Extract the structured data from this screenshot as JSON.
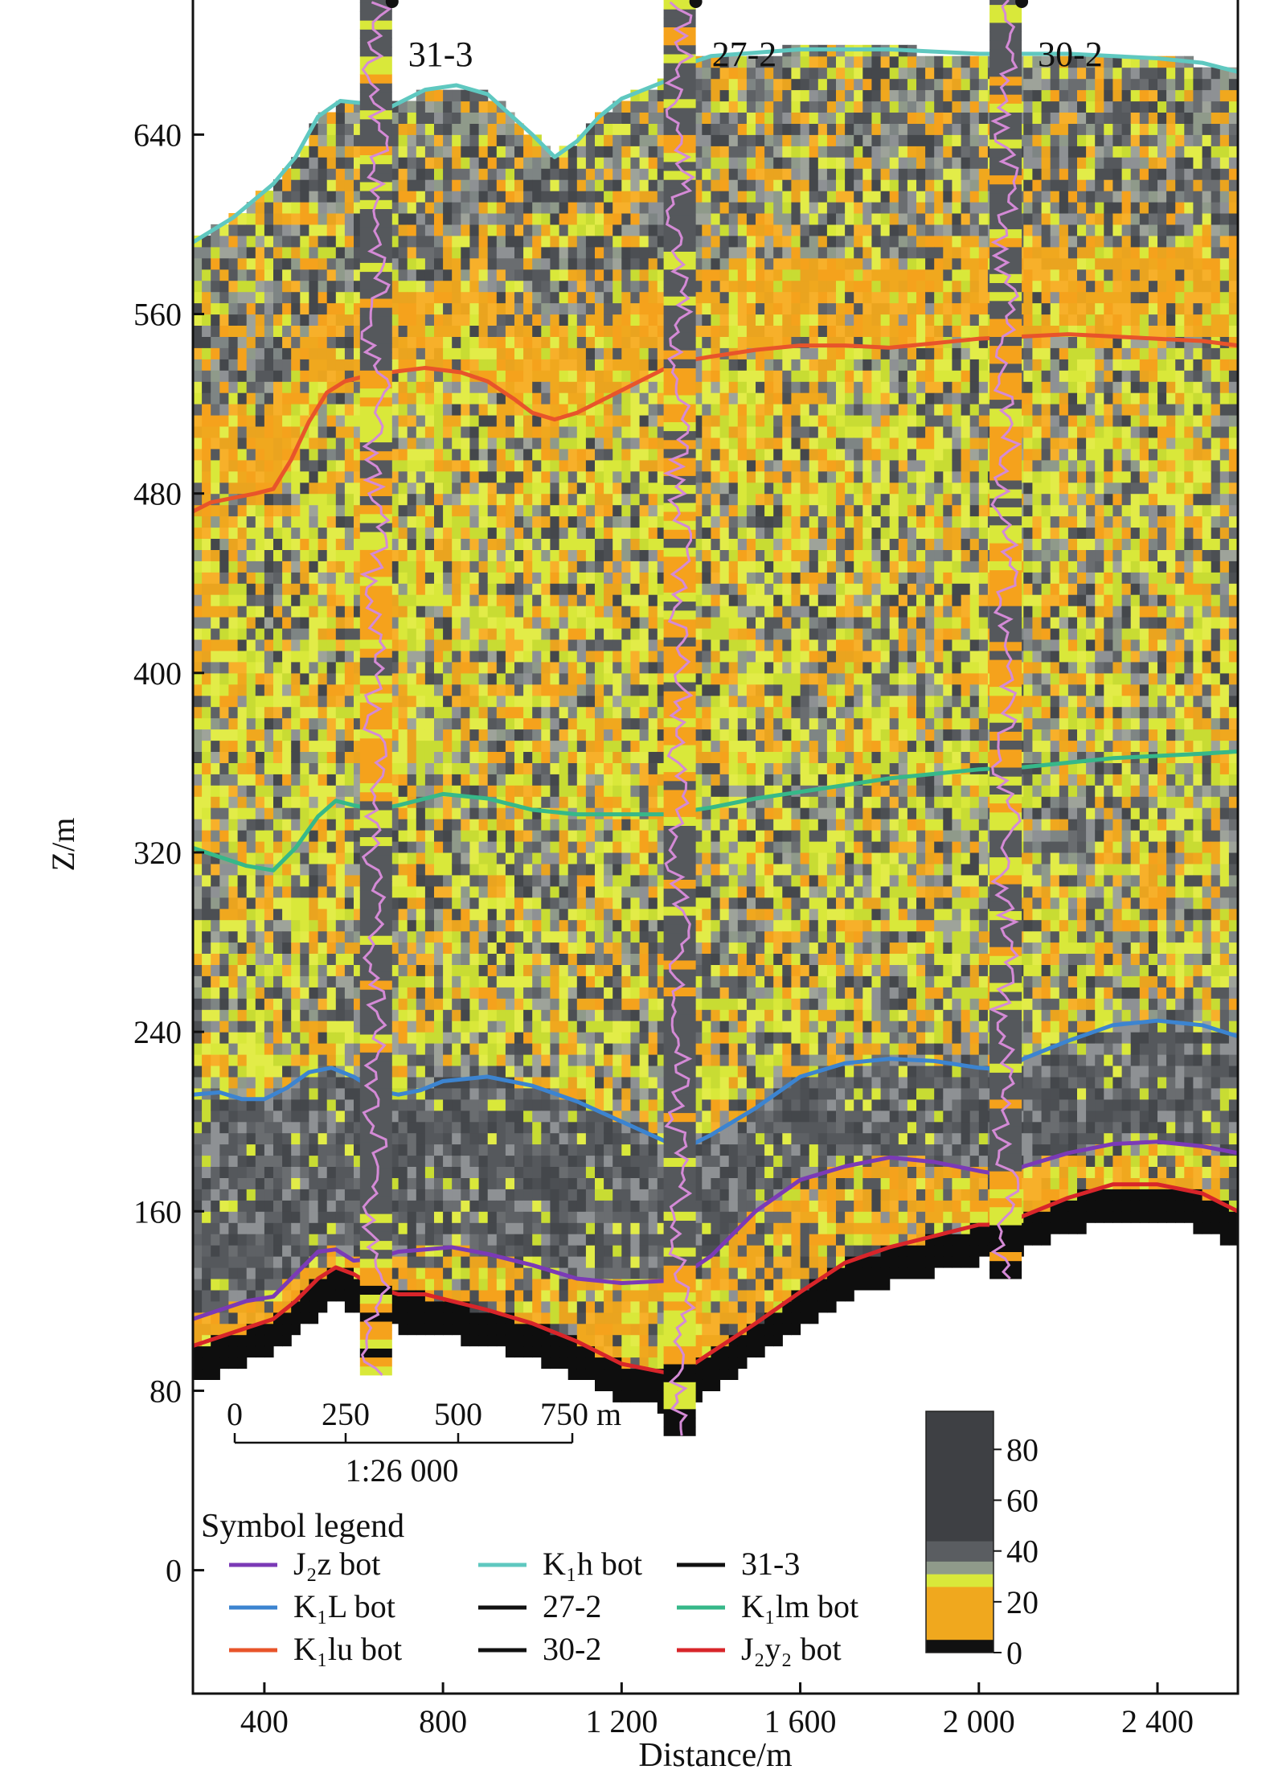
{
  "chart_data": {
    "type": "heatmap",
    "title": "",
    "xlabel": "Distance/m",
    "ylabel": "Z/m",
    "xlim": [
      240,
      2580
    ],
    "ylim": [
      -55,
      700
    ],
    "x_ticks": [
      "400",
      "800",
      "1 200",
      "1 600",
      "2 000",
      "2 400"
    ],
    "x_tick_values": [
      400,
      800,
      1200,
      1600,
      2000,
      2400
    ],
    "y_ticks": [
      "0",
      "80",
      "160",
      "240",
      "320",
      "400",
      "480",
      "560",
      "640"
    ],
    "y_tick_values": [
      0,
      80,
      160,
      240,
      320,
      400,
      480,
      560,
      640
    ],
    "colorbar": {
      "ticks": [
        "0",
        "20",
        "40",
        "60",
        "80"
      ],
      "tick_values": [
        0,
        20,
        40,
        60,
        80
      ],
      "range": [
        0,
        95
      ],
      "stops": [
        {
          "value": 0,
          "color": "#111111"
        },
        {
          "value": 5,
          "color": "#f5a21c"
        },
        {
          "value": 26,
          "color": "#f0a81e"
        },
        {
          "value": 31,
          "color": "#d9e83a"
        },
        {
          "value": 36,
          "color": "#8f9a8a"
        },
        {
          "value": 44,
          "color": "#5a5d61"
        },
        {
          "value": 95,
          "color": "#3e4044"
        }
      ]
    },
    "wells": [
      {
        "name": "31-3",
        "x": 650,
        "top": 700,
        "bottom": 87
      },
      {
        "name": "27-2",
        "x": 1330,
        "top": 700,
        "bottom": 60
      },
      {
        "name": "30-2",
        "x": 2060,
        "top": 700,
        "bottom": 130
      }
    ],
    "horizons": [
      {
        "name": "K1h bot",
        "color": "#5fc8c0",
        "x": [
          240,
          330,
          420,
          470,
          520,
          570,
          620,
          680,
          720,
          760,
          830,
          900,
          950,
          1000,
          1050,
          1100,
          1150,
          1200,
          1250,
          1300,
          1340,
          1400,
          1600,
          1800,
          2000,
          2200,
          2400,
          2500,
          2580
        ],
        "y": [
          592,
          603,
          618,
          630,
          648,
          655,
          654,
          652,
          656,
          660,
          662,
          658,
          649,
          640,
          630,
          637,
          648,
          656,
          660,
          664,
          671,
          675,
          678,
          678,
          676,
          676,
          674,
          672,
          668
        ]
      },
      {
        "name": "K1lu bot",
        "color": "#e8542a",
        "x": [
          240,
          280,
          330,
          380,
          420,
          460,
          500,
          540,
          580,
          620,
          680,
          760,
          840,
          900,
          960,
          1000,
          1050,
          1100,
          1150,
          1200,
          1250,
          1300,
          1340,
          1400,
          1500,
          1600,
          1700,
          1800,
          1900,
          2000,
          2100,
          2200,
          2300,
          2400,
          2500,
          2580
        ],
        "y": [
          472,
          476,
          478,
          480,
          482,
          495,
          512,
          525,
          530,
          532,
          534,
          536,
          534,
          530,
          522,
          516,
          513,
          516,
          521,
          526,
          531,
          536,
          539,
          541,
          544,
          546,
          546,
          545,
          547,
          549,
          550,
          551,
          550,
          549,
          548,
          546
        ]
      },
      {
        "name": "K1lm bot",
        "color": "#36b889",
        "x": [
          240,
          300,
          360,
          420,
          470,
          520,
          560,
          600,
          650,
          700,
          800,
          900,
          1000,
          1100,
          1200,
          1300,
          1400,
          1500,
          1600,
          1700,
          1800,
          1900,
          2000,
          2100,
          2200,
          2300,
          2400,
          2500,
          2580
        ],
        "y": [
          322,
          318,
          314,
          312,
          322,
          336,
          343,
          341,
          339,
          341,
          346,
          344,
          339,
          337,
          337,
          337,
          340,
          344,
          347,
          350,
          353,
          355,
          357,
          358,
          360,
          362,
          363,
          364,
          365
        ]
      },
      {
        "name": "K1L bot",
        "color": "#3c84d0",
        "x": [
          240,
          300,
          350,
          400,
          450,
          500,
          550,
          600,
          650,
          700,
          750,
          800,
          900,
          1000,
          1100,
          1200,
          1300,
          1340,
          1400,
          1500,
          1600,
          1700,
          1800,
          1900,
          2000,
          2060,
          2100,
          2200,
          2300,
          2400,
          2500,
          2580
        ],
        "y": [
          212,
          213,
          210,
          210,
          215,
          222,
          224,
          220,
          214,
          212,
          214,
          218,
          220,
          216,
          209,
          200,
          191,
          188,
          194,
          206,
          220,
          226,
          228,
          227,
          224,
          223,
          228,
          236,
          243,
          245,
          243,
          238
        ]
      },
      {
        "name": "J2z bot",
        "color": "#7b3ab6",
        "x": [
          240,
          300,
          360,
          420,
          470,
          520,
          560,
          600,
          650,
          700,
          760,
          820,
          900,
          1000,
          1100,
          1200,
          1300,
          1340,
          1400,
          1500,
          1600,
          1700,
          1800,
          1900,
          2000,
          2060,
          2100,
          2200,
          2300,
          2400,
          2500,
          2580
        ],
        "y": [
          112,
          116,
          120,
          122,
          132,
          142,
          143,
          138,
          139,
          142,
          143,
          144,
          141,
          136,
          130,
          128,
          129,
          132,
          140,
          160,
          174,
          180,
          184,
          182,
          178,
          176,
          180,
          186,
          190,
          191,
          189,
          186
        ]
      },
      {
        "name": "J2y2 bot",
        "color": "#d8252a",
        "x": [
          240,
          300,
          360,
          420,
          470,
          520,
          560,
          600,
          650,
          700,
          760,
          820,
          900,
          1000,
          1100,
          1200,
          1250,
          1300,
          1340,
          1400,
          1500,
          1600,
          1700,
          1800,
          1900,
          1960,
          2000,
          2060,
          2100,
          2200,
          2300,
          2400,
          2500,
          2580
        ],
        "y": [
          100,
          104,
          108,
          112,
          120,
          130,
          135,
          132,
          126,
          123,
          123,
          120,
          116,
          110,
          102,
          92,
          90,
          88,
          89,
          97,
          110,
          124,
          137,
          144,
          149,
          152,
          154,
          154,
          158,
          166,
          172,
          172,
          168,
          160
        ]
      }
    ],
    "legend_title": "Symbol legend",
    "legend": [
      {
        "label": "J₂z bot",
        "color": "#7b3ab6"
      },
      {
        "label": "K₁h bot",
        "color": "#5fc8c0"
      },
      {
        "label": "31-3",
        "color": "#111111"
      },
      {
        "label": "K₁L bot",
        "color": "#3c84d0"
      },
      {
        "label": "27-2",
        "color": "#111111"
      },
      {
        "label": "K₁lm bot",
        "color": "#36b889"
      },
      {
        "label": "K₁lu bot",
        "color": "#e8542a"
      },
      {
        "label": "30-2",
        "color": "#111111"
      },
      {
        "label": "J₂y₂ bot",
        "color": "#d8252a"
      }
    ],
    "scale_bar": {
      "ticks": [
        "0",
        "250",
        "500",
        "750 m"
      ],
      "ratio": "1:26 000"
    }
  }
}
